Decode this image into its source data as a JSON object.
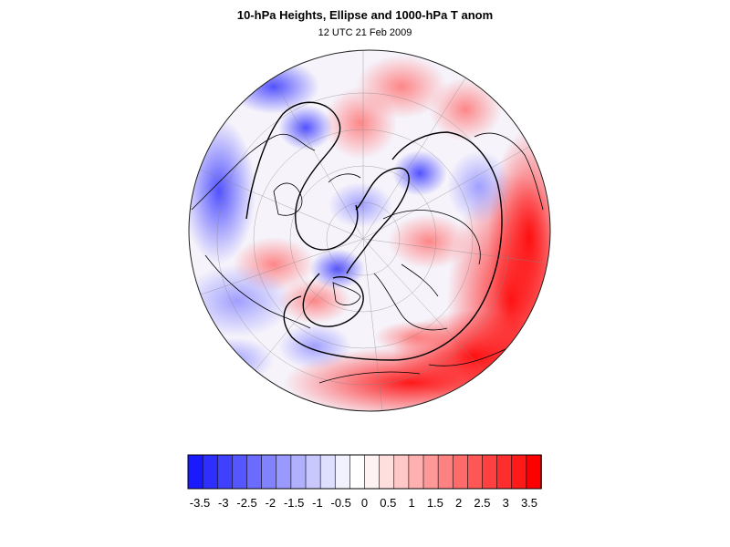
{
  "title": "10-hPa Heights, Ellipse and 1000-hPa T anom",
  "subtitle": "12 UTC 21 Feb 2009",
  "colorbar": {
    "colors": [
      "#1a1aff",
      "#2e2eff",
      "#4040ff",
      "#5656ff",
      "#6b6bff",
      "#8282ff",
      "#9999ff",
      "#b0b0ff",
      "#c8c8ff",
      "#dedeff",
      "#f2f2ff",
      "#ffffff",
      "#fff2f2",
      "#ffdede",
      "#ffc8c8",
      "#ffb0b0",
      "#ff9999",
      "#ff8282",
      "#ff6b6b",
      "#ff5656",
      "#ff4040",
      "#ff2e2e",
      "#ff1a1a",
      "#ff0000"
    ],
    "tick_labels": [
      "-3.5",
      "-3",
      "-2.5",
      "-2",
      "-1.5",
      "-1",
      "-0.5",
      "0",
      "0.5",
      "1",
      "1.5",
      "2",
      "2.5",
      "3",
      "3.5"
    ]
  },
  "map": {
    "projection": "orthographic north-polar view",
    "field": "1000-hPa temperature anomaly",
    "contours": "10-hPa heights",
    "ellipse": "vortex ellipse",
    "colors": {
      "cold": "#3b3bff",
      "warm": "#ff2a2a",
      "land_outline": "#000000",
      "graticule": "#888888"
    }
  }
}
